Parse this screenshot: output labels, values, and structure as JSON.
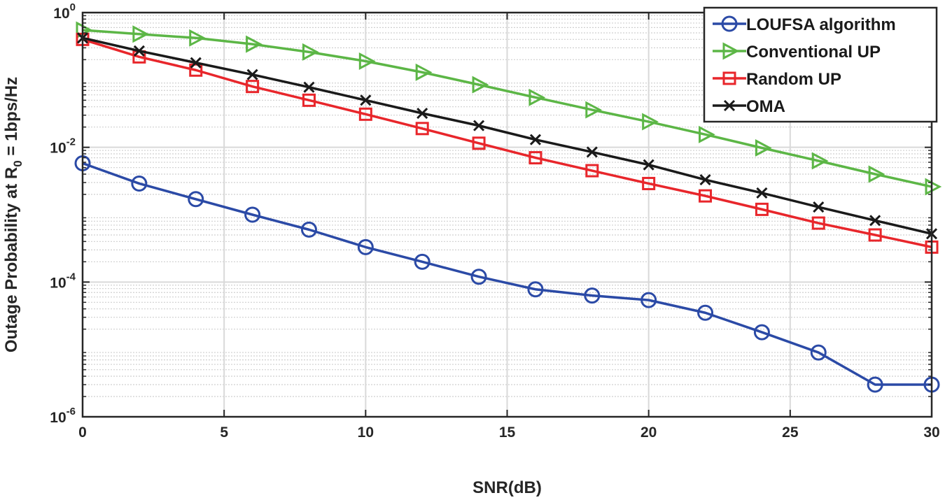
{
  "chart_data": {
    "type": "line",
    "title": "",
    "xlabel": "SNR(dB)",
    "ylabel": {
      "prefix": "Outage Probability at R",
      "subscript": "0",
      "suffix": " = 1bps/Hz"
    },
    "xlim": [
      0,
      30
    ],
    "ylim": [
      1e-06,
      1
    ],
    "yscale": "log",
    "grid": true,
    "x_ticks": [
      0,
      5,
      10,
      15,
      20,
      25,
      30
    ],
    "y_ticks": [
      {
        "value": 1,
        "base": "10",
        "exp": "0"
      },
      {
        "value": 0.01,
        "base": "10",
        "exp": "-2"
      },
      {
        "value": 0.0001,
        "base": "10",
        "exp": "-4"
      },
      {
        "value": 1e-06,
        "base": "10",
        "exp": "-6"
      }
    ],
    "legend_position": "top-right",
    "x": [
      0,
      2,
      4,
      6,
      8,
      10,
      12,
      14,
      16,
      18,
      20,
      22,
      24,
      26,
      28,
      30
    ],
    "series": [
      {
        "name": "LOUFSA algorithm",
        "color": "#2b4aa6",
        "marker": "circle",
        "values": [
          0.0058,
          0.0029,
          0.0017,
          0.001,
          0.0006,
          0.00033,
          0.0002,
          0.00012,
          7.8e-05,
          6.3e-05,
          5.4e-05,
          3.5e-05,
          1.8e-05,
          9e-06,
          3e-06,
          3e-06
        ]
      },
      {
        "name": "Conventional UP",
        "color": "#5cb646",
        "marker": "triangle-right",
        "values": [
          0.55,
          0.48,
          0.42,
          0.34,
          0.26,
          0.19,
          0.13,
          0.085,
          0.055,
          0.036,
          0.024,
          0.0155,
          0.0098,
          0.0063,
          0.004,
          0.0026
        ]
      },
      {
        "name": "Random UP",
        "color": "#e8262b",
        "marker": "square",
        "values": [
          0.4,
          0.22,
          0.14,
          0.08,
          0.05,
          0.031,
          0.019,
          0.0115,
          0.007,
          0.0045,
          0.0029,
          0.0019,
          0.0012,
          0.00075,
          0.0005,
          0.00033
        ]
      },
      {
        "name": "OMA",
        "color": "#1a1a1a",
        "marker": "x",
        "values": [
          0.42,
          0.27,
          0.18,
          0.12,
          0.078,
          0.05,
          0.032,
          0.021,
          0.013,
          0.0085,
          0.0055,
          0.0033,
          0.0021,
          0.0013,
          0.00082,
          0.00052
        ]
      }
    ]
  }
}
